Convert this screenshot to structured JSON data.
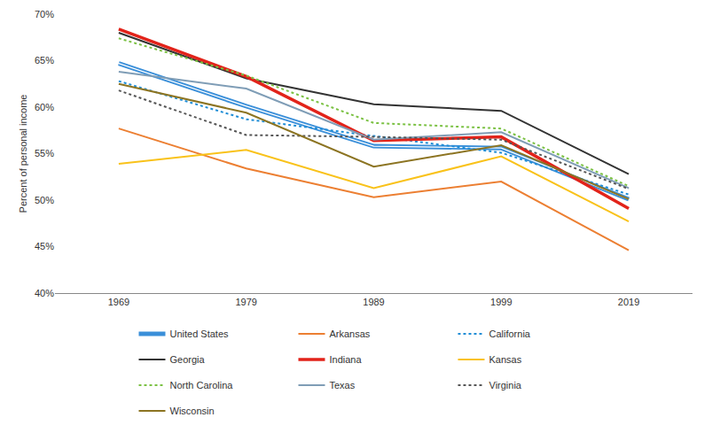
{
  "chart_data": {
    "type": "line",
    "y_label": "Percent of personal income",
    "categories": [
      "1969",
      "1979",
      "1989",
      "1999",
      "2019"
    ],
    "ylim": [
      40,
      70
    ],
    "yticks": [
      {
        "value": 40,
        "label": "40%"
      },
      {
        "value": 45,
        "label": "45%"
      },
      {
        "value": 50,
        "label": "50%"
      },
      {
        "value": 55,
        "label": "55%"
      },
      {
        "value": 60,
        "label": "60%"
      },
      {
        "value": 65,
        "label": "65%"
      },
      {
        "value": 70,
        "label": "70%"
      }
    ],
    "grid": false,
    "legend": "bottom",
    "series": [
      {
        "name": "United States",
        "color": "#3a8fd9",
        "line_style": "double",
        "values": [
          64.7,
          60.1,
          55.8,
          55.6,
          50.1
        ]
      },
      {
        "name": "Arkansas",
        "color": "#ec7f32",
        "line_style": "solid",
        "values": [
          57.7,
          53.4,
          50.3,
          52.0,
          44.6
        ]
      },
      {
        "name": "California",
        "color": "#1f8dd6",
        "line_style": "dotted",
        "values": [
          62.8,
          58.7,
          56.9,
          55.1,
          50.6
        ]
      },
      {
        "name": "Georgia",
        "color": "#333333",
        "line_style": "solid",
        "values": [
          68.0,
          63.1,
          60.3,
          59.6,
          52.8
        ]
      },
      {
        "name": "Indiana",
        "color": "#e2231a",
        "line_style": "thick",
        "values": [
          68.4,
          63.3,
          56.4,
          56.8,
          49.1
        ]
      },
      {
        "name": "Kansas",
        "color": "#f9c21a",
        "line_style": "solid",
        "values": [
          53.9,
          55.4,
          51.3,
          54.7,
          47.7
        ]
      },
      {
        "name": "North Carolina",
        "color": "#7bc143",
        "line_style": "dotted",
        "values": [
          67.4,
          63.4,
          58.3,
          57.7,
          51.5
        ]
      },
      {
        "name": "Texas",
        "color": "#7f9db6",
        "line_style": "solid",
        "values": [
          63.8,
          62.0,
          56.5,
          57.3,
          51.3
        ]
      },
      {
        "name": "Virginia",
        "color": "#555555",
        "line_style": "dotted",
        "values": [
          61.8,
          57.0,
          56.8,
          56.5,
          51.2
        ]
      },
      {
        "name": "Wisconsin",
        "color": "#8c7422",
        "line_style": "solid",
        "values": [
          62.5,
          59.4,
          53.6,
          55.9,
          50.1
        ]
      }
    ]
  }
}
